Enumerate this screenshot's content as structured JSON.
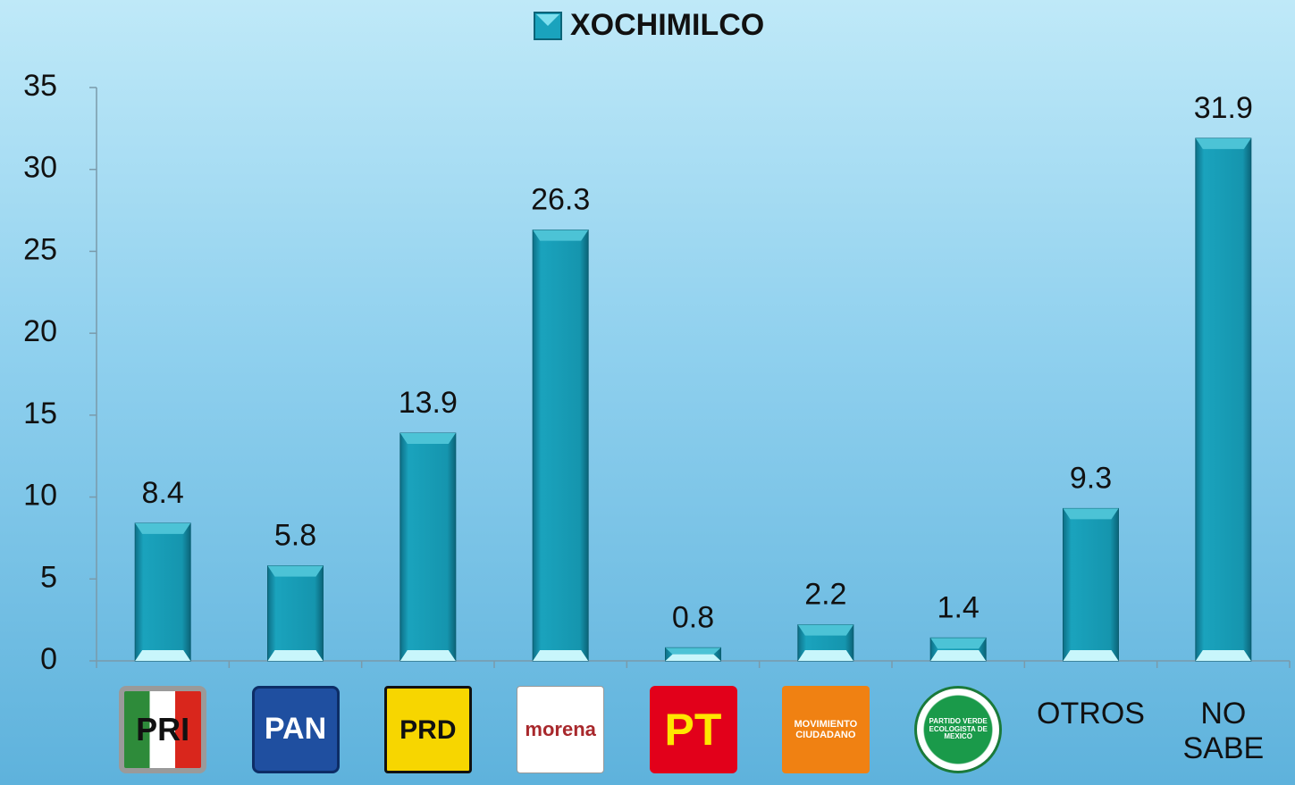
{
  "chart_data": {
    "type": "bar",
    "categories": [
      "PRI",
      "PAN",
      "PRD",
      "morena",
      "PT",
      "MOVIMIENTO CIUDADANO",
      "PARTIDO VERDE ECOLOGISTA DE MEXICO",
      "OTROS",
      "NO SABE"
    ],
    "series": [
      {
        "name": "XOCHIMILCO",
        "color": "#1798b2",
        "values": [
          8.4,
          5.8,
          13.9,
          26.3,
          0.8,
          2.2,
          1.4,
          9.3,
          31.9
        ]
      }
    ],
    "ylim": [
      0,
      35
    ],
    "yticks": [
      0,
      5,
      10,
      15,
      20,
      25,
      30,
      35
    ],
    "grid": false,
    "legend": "top"
  }
}
